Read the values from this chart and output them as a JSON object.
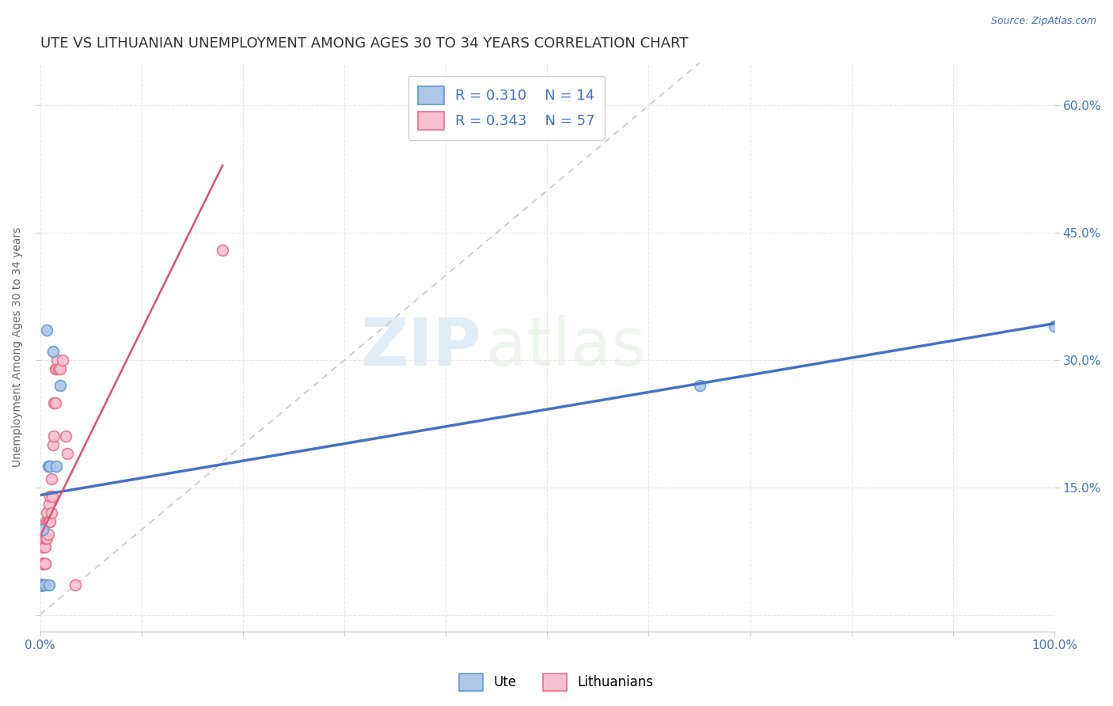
{
  "title": "UTE VS LITHUANIAN UNEMPLOYMENT AMONG AGES 30 TO 34 YEARS CORRELATION CHART",
  "source": "Source: ZipAtlas.com",
  "ylabel": "Unemployment Among Ages 30 to 34 years",
  "xlabel": "",
  "background_color": "#ffffff",
  "watermark_zip": "ZIP",
  "watermark_atlas": "atlas",
  "ute": {
    "label": "Ute",
    "R": 0.31,
    "N": 14,
    "color": "#aec6e8",
    "edge_color": "#5b9bd5",
    "line_color": "#4472c4",
    "x": [
      0.001,
      0.002,
      0.003,
      0.004,
      0.005,
      0.007,
      0.008,
      0.009,
      0.01,
      0.013,
      0.016,
      0.02,
      0.65,
      1.0
    ],
    "y": [
      0.035,
      0.035,
      0.1,
      0.035,
      0.035,
      0.335,
      0.175,
      0.035,
      0.175,
      0.31,
      0.175,
      0.27,
      0.27,
      0.34
    ]
  },
  "lith": {
    "label": "Lithuanians",
    "R": 0.343,
    "N": 57,
    "color": "#f7c0d0",
    "edge_color": "#e8708a",
    "line_color": "#e05070",
    "x": [
      0.001,
      0.001,
      0.001,
      0.001,
      0.001,
      0.001,
      0.001,
      0.001,
      0.002,
      0.002,
      0.002,
      0.002,
      0.002,
      0.002,
      0.002,
      0.002,
      0.003,
      0.003,
      0.003,
      0.003,
      0.003,
      0.003,
      0.004,
      0.004,
      0.004,
      0.005,
      0.005,
      0.005,
      0.005,
      0.006,
      0.006,
      0.007,
      0.007,
      0.007,
      0.008,
      0.008,
      0.009,
      0.009,
      0.01,
      0.01,
      0.011,
      0.011,
      0.012,
      0.013,
      0.014,
      0.014,
      0.015,
      0.015,
      0.016,
      0.017,
      0.018,
      0.02,
      0.022,
      0.025,
      0.027,
      0.035,
      0.18
    ],
    "y": [
      0.035,
      0.035,
      0.035,
      0.035,
      0.035,
      0.035,
      0.035,
      0.035,
      0.035,
      0.035,
      0.035,
      0.035,
      0.06,
      0.06,
      0.06,
      0.08,
      0.035,
      0.06,
      0.06,
      0.08,
      0.08,
      0.09,
      0.06,
      0.08,
      0.09,
      0.06,
      0.06,
      0.08,
      0.09,
      0.09,
      0.11,
      0.09,
      0.11,
      0.12,
      0.095,
      0.11,
      0.11,
      0.13,
      0.11,
      0.14,
      0.12,
      0.16,
      0.14,
      0.2,
      0.21,
      0.25,
      0.25,
      0.29,
      0.29,
      0.3,
      0.29,
      0.29,
      0.3,
      0.21,
      0.19,
      0.035,
      0.43
    ]
  },
  "lith_line_xrange": [
    0.0,
    0.18
  ],
  "ute_line_xrange": [
    0.0,
    1.0
  ],
  "xlim": [
    0.0,
    1.0
  ],
  "ylim": [
    -0.02,
    0.65
  ],
  "xticks": [
    0.0,
    0.1,
    0.2,
    0.3,
    0.4,
    0.5,
    0.6,
    0.7,
    0.8,
    0.9,
    1.0
  ],
  "yticks": [
    0.0,
    0.15,
    0.3,
    0.45,
    0.6
  ],
  "xtick_labels": [
    "0.0%",
    "",
    "",
    "",
    "",
    "",
    "",
    "",
    "",
    "",
    "100.0%"
  ],
  "right_ytick_labels": [
    "15.0%",
    "30.0%",
    "45.0%",
    "60.0%"
  ],
  "right_yticks": [
    0.15,
    0.3,
    0.45,
    0.6
  ],
  "grid_color": "#e8e8e8",
  "title_fontsize": 13,
  "label_fontsize": 10,
  "tick_fontsize": 11,
  "legend_fontsize": 13
}
